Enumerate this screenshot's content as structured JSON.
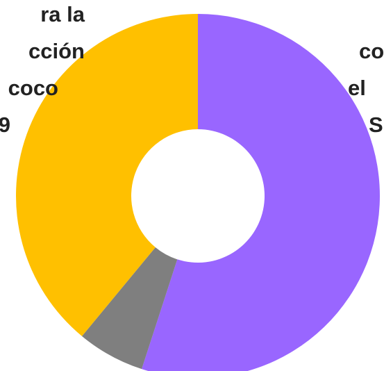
{
  "chart_data": {
    "type": "pie",
    "variant": "donut",
    "slices": [
      {
        "value": 55,
        "color": "#9966FF"
      },
      {
        "value": 6,
        "color": "#7F7F7F"
      },
      {
        "value": 39,
        "color": "#FFC000"
      }
    ],
    "data_labels": [
      {
        "lines": [
          "ra la",
          "cción",
          "coco",
          "9"
        ]
      },
      {
        "lines": [
          "co",
          "el",
          "S"
        ]
      }
    ],
    "legend": "none",
    "grid": false
  }
}
